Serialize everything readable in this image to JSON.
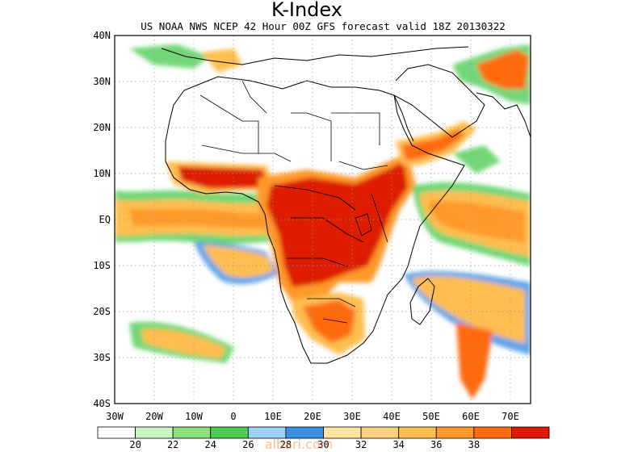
{
  "title": "K-Index",
  "subtitle": "US NOAA NWS NCEP 42 Hour 00Z GFS forecast valid 18Z 20130322",
  "map": {
    "region": "Africa",
    "lat_range": [
      -40,
      40
    ],
    "lon_range": [
      -30,
      75
    ],
    "lat_ticks": [
      "40N",
      "30N",
      "20N",
      "10N",
      "EQ",
      "10S",
      "20S",
      "30S",
      "40S"
    ],
    "lon_ticks": [
      "30W",
      "20W",
      "10W",
      "0",
      "10E",
      "20E",
      "30E",
      "40E",
      "50E",
      "60E",
      "70E"
    ],
    "grid": true,
    "features": [
      "coastlines",
      "country borders"
    ],
    "field": "K-Index"
  },
  "colorbar": {
    "colors": [
      "#ffffff",
      "#c8f5c0",
      "#8be07a",
      "#4fcc55",
      "#9fd2f5",
      "#3a8fe0",
      "#ffe6a0",
      "#ffd280",
      "#ffbe50",
      "#ff9a2a",
      "#ff6a10",
      "#dd1a00"
    ],
    "labels": [
      "20",
      "22",
      "24",
      "26",
      "28",
      "30",
      "32",
      "34",
      "36",
      "38"
    ]
  },
  "watermark": "albari.com"
}
